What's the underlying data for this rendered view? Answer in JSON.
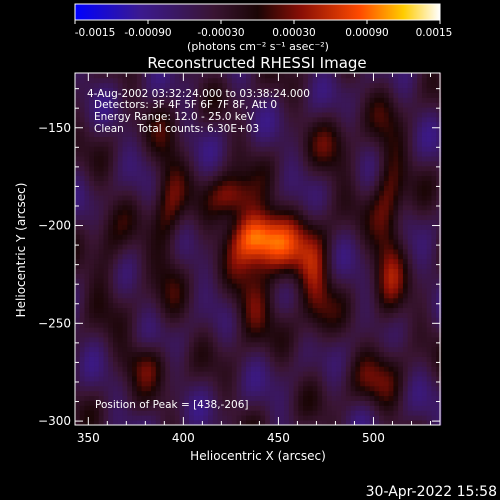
{
  "chart_data": {
    "type": "heatmap",
    "title": "Reconstructed RHESSI Image",
    "xlabel": "Heliocentric X (arcsec)",
    "ylabel": "Heliocentric Y (arcsec)",
    "xlim": [
      343,
      535
    ],
    "ylim": [
      -302,
      -122
    ],
    "x_ticks": [
      350,
      400,
      450,
      500
    ],
    "y_ticks": [
      -150,
      -200,
      -250,
      -300
    ],
    "colorbar": {
      "range": [
        -0.0015,
        0.0015
      ],
      "ticks": [
        "-0.0015",
        "-0.00090",
        "-0.00030",
        "0.00030",
        "0.00090",
        "0.0015"
      ],
      "tick_values": [
        -0.0015,
        -0.0009,
        -0.0003,
        0.0003,
        0.0009,
        0.0015
      ],
      "unit_label": "(photons cm⁻² s⁻¹ asec⁻²)"
    },
    "annotations": [
      "4-Aug-2002 03:32:24.000 to 03:38:24.000",
      "Detectors: 3F 4F 5F 6F 7F 8F, Att 0",
      "Energy Range: 12.0 - 25.0 keV",
      "Clean    Total counts: 6.30E+03"
    ],
    "peak_label": "Position of Peak = [438,-206]",
    "peak": [
      438,
      -206
    ],
    "sources": [
      {
        "x": 438,
        "y": -205,
        "sx": 9,
        "sy": 10,
        "amp": 0.0015
      },
      {
        "x": 426,
        "y": -185,
        "sx": 8,
        "sy": 8,
        "amp": 0.0009
      },
      {
        "x": 455,
        "y": -215,
        "sx": 10,
        "sy": 12,
        "amp": 0.0008
      },
      {
        "x": 435,
        "y": -240,
        "sx": 8,
        "sy": 12,
        "amp": 0.0006
      },
      {
        "x": 470,
        "y": -230,
        "sx": 6,
        "sy": 22,
        "amp": 0.0006
      },
      {
        "x": 508,
        "y": -200,
        "sx": 6,
        "sy": 40,
        "amp": 0.0007
      },
      {
        "x": 392,
        "y": -190,
        "sx": 6,
        "sy": 30,
        "amp": 0.0006
      },
      {
        "x": 360,
        "y": -215,
        "sx": 7,
        "sy": 18,
        "amp": 0.0004
      },
      {
        "x": 480,
        "y": -160,
        "sx": 8,
        "sy": 12,
        "amp": 0.0004
      },
      {
        "x": 380,
        "y": -270,
        "sx": 10,
        "sy": 8,
        "amp": 0.0005
      },
      {
        "x": 500,
        "y": -280,
        "sx": 10,
        "sy": 10,
        "amp": 0.0004
      }
    ]
  },
  "footer": {
    "timestamp": "30-Apr-2022 15:58"
  }
}
